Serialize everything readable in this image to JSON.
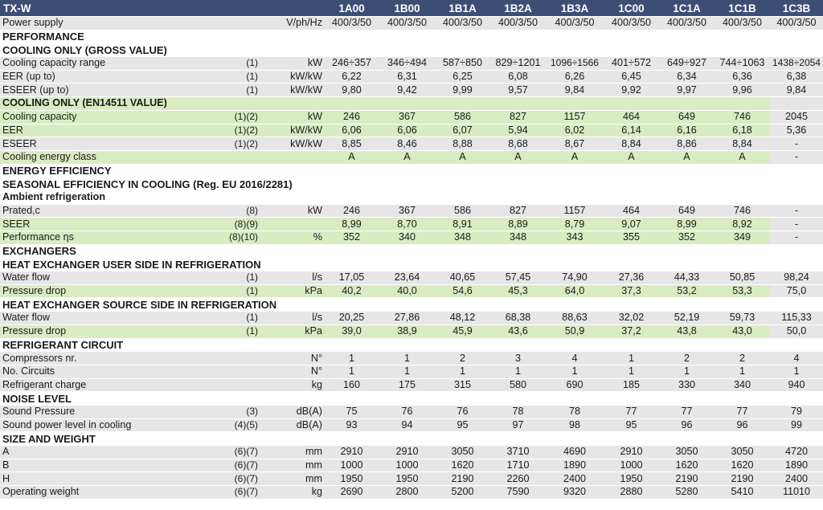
{
  "title": "TX-W",
  "models": [
    "1A00",
    "1B00",
    "1B1A",
    "1B2A",
    "1B3A",
    "1C00",
    "1C1A",
    "1C1B",
    "1C3B"
  ],
  "rows": [
    {
      "type": "grey",
      "label": "Power supply",
      "note": "",
      "unit": "V/ph/Hz",
      "values": [
        "400/3/50",
        "400/3/50",
        "400/3/50",
        "400/3/50",
        "400/3/50",
        "400/3/50",
        "400/3/50",
        "400/3/50",
        "400/3/50"
      ]
    },
    {
      "type": "section",
      "label": "PERFORMANCE"
    },
    {
      "type": "section",
      "label": "COOLING ONLY (GROSS VALUE)"
    },
    {
      "type": "grey",
      "label": "Cooling capacity range",
      "note": "(1)",
      "unit": "kW",
      "values": [
        "246÷357",
        "346÷494",
        "587÷850",
        "829÷1201",
        "1096÷1566",
        "401÷572",
        "649÷927",
        "744÷1063",
        "1438÷2054"
      ]
    },
    {
      "type": "grey",
      "label": "EER (up to)",
      "note": "(1)",
      "unit": "kW/kW",
      "values": [
        "6,22",
        "6,31",
        "6,25",
        "6,08",
        "6,26",
        "6,45",
        "6,34",
        "6,36",
        "6,38"
      ]
    },
    {
      "type": "grey",
      "label": "ESEER (up to)",
      "note": "(1)",
      "unit": "kW/kW",
      "values": [
        "9,80",
        "9,42",
        "9,99",
        "9,57",
        "9,84",
        "9,92",
        "9,97",
        "9,96",
        "9,84"
      ]
    },
    {
      "type": "green",
      "label": "COOLING ONLY (EN14511 VALUE)",
      "bold": true,
      "note": "",
      "unit": "",
      "values": [
        "",
        "",
        "",
        "",
        "",
        "",
        "",
        "",
        ""
      ]
    },
    {
      "type": "green",
      "label": "Cooling capacity",
      "note": "(1)(2)",
      "unit": "kW",
      "values": [
        "246",
        "367",
        "586",
        "827",
        "1157",
        "464",
        "649",
        "746",
        "2045"
      ]
    },
    {
      "type": "green",
      "label": "EER",
      "note": "(1)(2)",
      "unit": "kW/kW",
      "values": [
        "6,06",
        "6,06",
        "6,07",
        "5,94",
        "6,02",
        "6,14",
        "6,16",
        "6,18",
        "5,36"
      ]
    },
    {
      "type": "grey",
      "label": "ESEER",
      "note": "(1)(2)",
      "unit": "kW/kW",
      "values": [
        "8,85",
        "8,46",
        "8,88",
        "8,68",
        "8,67",
        "8,84",
        "8,86",
        "8,84",
        "-"
      ]
    },
    {
      "type": "green",
      "label": "Cooling  energy class",
      "note": "",
      "unit": "",
      "values": [
        "A",
        "A",
        "A",
        "A",
        "A",
        "A",
        "A",
        "A",
        "-"
      ]
    },
    {
      "type": "section",
      "label": "ENERGY EFFICIENCY"
    },
    {
      "type": "section",
      "label": "SEASONAL EFFICIENCY IN COOLING (Reg. EU 2016/2281)"
    },
    {
      "type": "sub",
      "label": "Ambient refrigeration"
    },
    {
      "type": "grey",
      "label": "Prated,c",
      "note": "(8)",
      "unit": "kW",
      "values": [
        "246",
        "367",
        "586",
        "827",
        "1157",
        "464",
        "649",
        "746",
        "-"
      ]
    },
    {
      "type": "green",
      "label": "SEER",
      "note": "(8)(9)",
      "unit": "",
      "values": [
        "8,99",
        "8,70",
        "8,91",
        "8,89",
        "8,79",
        "9,07",
        "8,99",
        "8,92",
        "-"
      ]
    },
    {
      "type": "green",
      "label": "Performance ηs",
      "note": "(8)(10)",
      "unit": "%",
      "values": [
        "352",
        "340",
        "348",
        "348",
        "343",
        "355",
        "352",
        "349",
        "-"
      ]
    },
    {
      "type": "section",
      "label": "EXCHANGERS"
    },
    {
      "type": "section",
      "label": "HEAT EXCHANGER USER SIDE IN REFRIGERATION"
    },
    {
      "type": "grey",
      "label": "Water flow",
      "note": "(1)",
      "unit": "l/s",
      "values": [
        "17,05",
        "23,64",
        "40,65",
        "57,45",
        "74,90",
        "27,36",
        "44,33",
        "50,85",
        "98,24"
      ]
    },
    {
      "type": "green",
      "label": "Pressure drop",
      "note": "(1)",
      "unit": "kPa",
      "values": [
        "40,2",
        "40,0",
        "54,6",
        "45,3",
        "64,0",
        "37,3",
        "53,2",
        "53,3",
        "75,0"
      ]
    },
    {
      "type": "section",
      "label": "HEAT EXCHANGER SOURCE SIDE IN REFRIGERATION"
    },
    {
      "type": "grey",
      "label": "Water flow",
      "note": "(1)",
      "unit": "l/s",
      "values": [
        "20,25",
        "27,86",
        "48,12",
        "68,38",
        "88,63",
        "32,02",
        "52,19",
        "59,73",
        "115,33"
      ]
    },
    {
      "type": "green",
      "label": "Pressure drop",
      "note": "(1)",
      "unit": "kPa",
      "values": [
        "39,0",
        "38,9",
        "45,9",
        "43,6",
        "50,9",
        "37,2",
        "43,8",
        "43,0",
        "50,0"
      ]
    },
    {
      "type": "section",
      "label": "REFRIGERANT CIRCUIT"
    },
    {
      "type": "grey",
      "label": "Compressors nr.",
      "note": "",
      "unit": "N°",
      "values": [
        "1",
        "1",
        "2",
        "3",
        "4",
        "1",
        "2",
        "2",
        "4"
      ]
    },
    {
      "type": "grey",
      "label": "No. Circuits",
      "note": "",
      "unit": "N°",
      "values": [
        "1",
        "1",
        "1",
        "1",
        "1",
        "1",
        "1",
        "1",
        "1"
      ]
    },
    {
      "type": "grey",
      "label": "Refrigerant charge",
      "note": "",
      "unit": "kg",
      "values": [
        "160",
        "175",
        "315",
        "580",
        "690",
        "185",
        "330",
        "340",
        "940"
      ]
    },
    {
      "type": "section",
      "label": "NOISE LEVEL"
    },
    {
      "type": "grey",
      "label": "Sound Pressure",
      "note": "(3)",
      "unit": "dB(A)",
      "values": [
        "75",
        "76",
        "76",
        "78",
        "78",
        "77",
        "77",
        "77",
        "79"
      ]
    },
    {
      "type": "grey",
      "label": "Sound power level in cooling",
      "note": "(4)(5)",
      "unit": "dB(A)",
      "values": [
        "93",
        "94",
        "95",
        "97",
        "98",
        "95",
        "96",
        "96",
        "99"
      ]
    },
    {
      "type": "section",
      "label": "SIZE AND WEIGHT"
    },
    {
      "type": "grey",
      "label": "A",
      "note": "(6)(7)",
      "unit": "mm",
      "values": [
        "2910",
        "2910",
        "3050",
        "3710",
        "4690",
        "2910",
        "3050",
        "3050",
        "4720"
      ]
    },
    {
      "type": "grey",
      "label": "B",
      "note": "(6)(7)",
      "unit": "mm",
      "values": [
        "1000",
        "1000",
        "1620",
        "1710",
        "1890",
        "1000",
        "1620",
        "1620",
        "1890"
      ]
    },
    {
      "type": "grey",
      "label": "H",
      "note": "(6)(7)",
      "unit": "mm",
      "values": [
        "1950",
        "1950",
        "2190",
        "2260",
        "2400",
        "1950",
        "2190",
        "2190",
        "2400"
      ]
    },
    {
      "type": "grey",
      "label": "Operating weight",
      "note": "(6)(7)",
      "unit": "kg",
      "values": [
        "2690",
        "2800",
        "5200",
        "7590",
        "9320",
        "2880",
        "5280",
        "5410",
        "11010"
      ]
    }
  ]
}
